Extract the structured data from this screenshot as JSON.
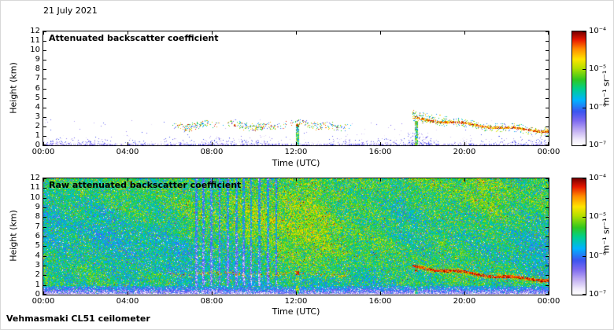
{
  "header": {
    "date": "21 July 2021"
  },
  "footer": {
    "instrument": "Vehmasmaki CL51 ceilometer"
  },
  "style": {
    "background": "#ffffff",
    "frame_color": "#000000",
    "colormap": [
      {
        "t": 0.0,
        "c": "#ffffff"
      },
      {
        "t": 0.05,
        "c": "#f3eefc"
      },
      {
        "t": 0.13,
        "c": "#c3b1f2"
      },
      {
        "t": 0.22,
        "c": "#7e6af0"
      },
      {
        "t": 0.3,
        "c": "#3c55f0"
      },
      {
        "t": 0.4,
        "c": "#00b4ff"
      },
      {
        "t": 0.5,
        "c": "#00d08c"
      },
      {
        "t": 0.58,
        "c": "#30c820"
      },
      {
        "t": 0.68,
        "c": "#b4e000"
      },
      {
        "t": 0.76,
        "c": "#ffe400"
      },
      {
        "t": 0.85,
        "c": "#ff8c00"
      },
      {
        "t": 0.93,
        "c": "#e81800"
      },
      {
        "t": 1.0,
        "c": "#7c0000"
      }
    ]
  },
  "chart_data": [
    {
      "type": "heatmap",
      "render": "clean",
      "seed": 7,
      "title": "Attenuated backscatter coefficient",
      "xlabel": "Time (UTC)",
      "ylabel": "Height (km)",
      "xlim_hours": [
        0,
        24
      ],
      "ylim_km": [
        0,
        12
      ],
      "xtick_labels": [
        "00:00",
        "04:00",
        "08:00",
        "12:00",
        "16:00",
        "20:00",
        "00:00"
      ],
      "ytick_labels": [
        "12",
        "11",
        "10",
        "9",
        "8",
        "7",
        "6",
        "5",
        "4",
        "3",
        "2",
        "1",
        "0"
      ],
      "grid": false,
      "colorbar": {
        "unit": "m⁻¹ sr⁻¹",
        "scale": "log",
        "tick_labels": [
          "10⁻⁴",
          "10⁻⁵",
          "10⁻⁶",
          "10⁻⁷"
        ],
        "tick_values": [
          0.0001,
          1e-05,
          1e-06,
          1e-07
        ]
      },
      "features": {
        "surface_noise": {
          "top_km": 1.35,
          "density": 0.42
        },
        "sparse_speckle": {
          "top_km": 2.8,
          "density": 0.004
        },
        "aerosol_layer": {
          "t_start": 6.0,
          "t_end": 14.6,
          "center_km": 2.15,
          "halfwidth_km": 0.22,
          "density": 0.32
        },
        "noon_streak": {
          "t": 12.05,
          "halfwidth_h": 0.07,
          "top_km": 2.25
        },
        "evening_streak": {
          "t": 17.7,
          "halfwidth_h": 0.06,
          "top_km": 2.6
        },
        "evening_cloud_track_km": [
          [
            17.5,
            2.9
          ],
          [
            18.5,
            2.65
          ],
          [
            19.5,
            2.45
          ],
          [
            20.5,
            2.15
          ],
          [
            21.5,
            1.95
          ],
          [
            22.5,
            1.75
          ],
          [
            24.0,
            1.55
          ]
        ],
        "evening_cloud_density": 0.78
      }
    },
    {
      "type": "heatmap",
      "render": "raw",
      "seed": 13,
      "title": "Raw attenuated backscatter coefficient",
      "xlabel": "Time (UTC)",
      "ylabel": "Height (km)",
      "xlim_hours": [
        0,
        24
      ],
      "ylim_km": [
        0,
        12
      ],
      "xtick_labels": [
        "00:00",
        "04:00",
        "08:00",
        "12:00",
        "16:00",
        "20:00",
        "00:00"
      ],
      "ytick_labels": [
        "12",
        "11",
        "10",
        "9",
        "8",
        "7",
        "6",
        "5",
        "4",
        "3",
        "2",
        "1",
        "0"
      ],
      "grid": false,
      "colorbar": {
        "unit": "m⁻¹ sr⁻¹",
        "scale": "log",
        "tick_labels": [
          "10⁻⁴",
          "10⁻⁵",
          "10⁻⁶",
          "10⁻⁷"
        ],
        "tick_values": [
          0.0001,
          1e-05,
          1e-06,
          1e-07
        ]
      },
      "features": {
        "base_level": 0.47,
        "noise_sd": 0.14,
        "low_band_top_km": 0.95,
        "hot_regions": [
          {
            "t_center": 12.0,
            "h_center_km": 9.0,
            "sig_t": 4.0,
            "sig_h": 5.1,
            "amplitude": 0.15
          },
          {
            "t_center": 20.3,
            "h_center_km": 8.5,
            "sig_t": 2.4,
            "sig_h": 5.5,
            "amplitude": 0.08
          },
          {
            "t_center": 12.0,
            "h_center_km": 3.0,
            "sig_t": 1.2,
            "sig_h": 2.0,
            "amplitude": 0.08
          }
        ],
        "stripes_hours": [
          7.25,
          7.6,
          7.95,
          8.35,
          8.75,
          9.15,
          9.5,
          9.85,
          10.25,
          10.65,
          11.05
        ]
      }
    }
  ]
}
